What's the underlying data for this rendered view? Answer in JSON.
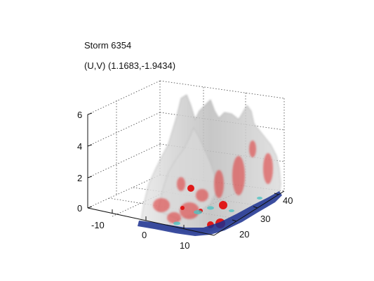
{
  "figure": {
    "title": "Storm 6354",
    "subtitle": "(U,V) (1.1683,-1.9434)"
  },
  "chart_data": {
    "type": "3d-isosurface",
    "title": "Storm 6354",
    "subtitle": "(U,V) (1.1683,-1.9434)",
    "axes": {
      "x": {
        "ticks": [
          -10,
          0,
          10
        ],
        "range": [
          -15,
          15
        ]
      },
      "y": {
        "ticks": [
          20,
          30,
          40
        ],
        "range": [
          15,
          45
        ]
      },
      "z": {
        "ticks": [
          0,
          2,
          4,
          6
        ],
        "range": [
          0,
          6
        ]
      }
    },
    "grid": true,
    "surfaces": [
      {
        "color": "#c8c8c8",
        "style": "translucent"
      },
      {
        "color": "#e03030",
        "style": "translucent"
      },
      {
        "color": "#4fc3c3",
        "style": "near-ground"
      },
      {
        "color": "#1a2f8f",
        "style": "ground"
      }
    ]
  }
}
